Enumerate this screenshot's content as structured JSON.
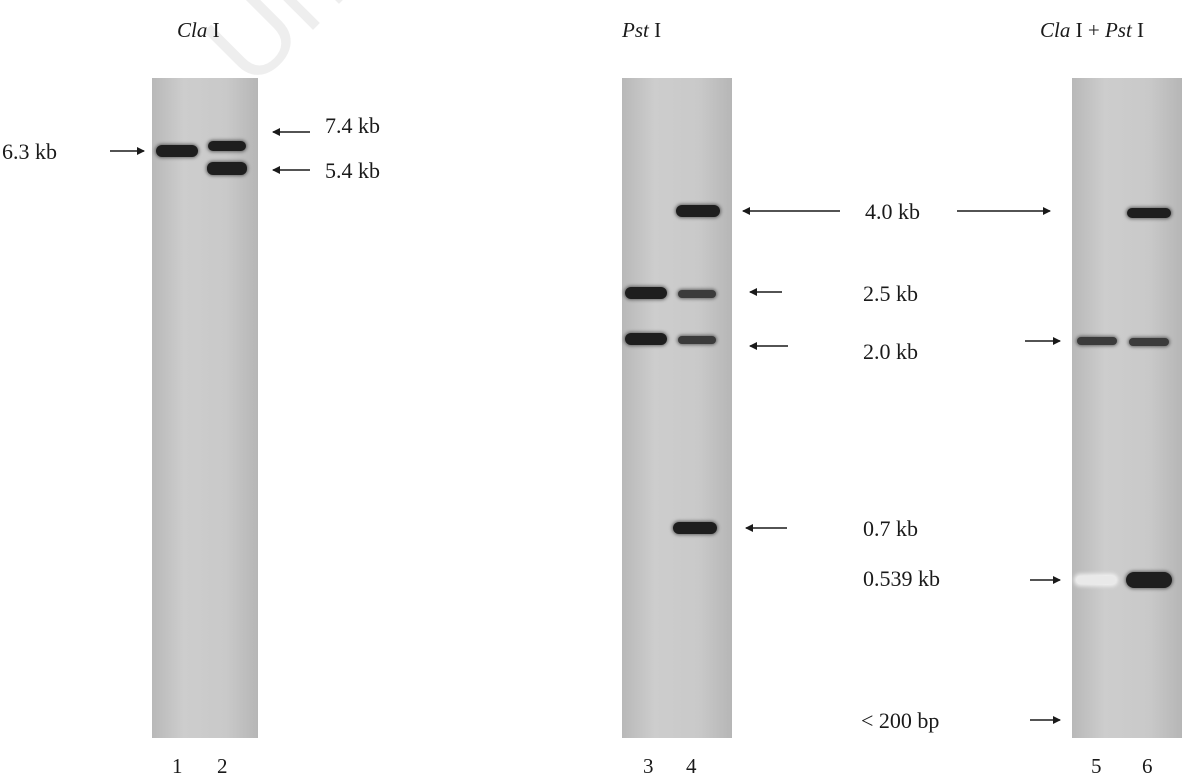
{
  "titles": {
    "left": {
      "enzyme": "Cla",
      "suffix": " I"
    },
    "middle": {
      "enzyme": "Pst",
      "suffix": " I"
    },
    "right": {
      "enzyme1": "Cla",
      "mid": " I + ",
      "enzyme2": "Pst",
      "suffix": " I"
    }
  },
  "size_labels": {
    "l_6_3": "6.3 kb",
    "l_7_4": "7.4 kb",
    "l_5_4": "5.4 kb",
    "l_4_0": "4.0 kb",
    "l_2_5": "2.5 kb",
    "l_2_0": "2.0 kb",
    "l_0_7": "0.7 kb",
    "l_0_539": "0.539 kb",
    "l_200bp": "< 200 bp"
  },
  "lane_numbers": [
    "1",
    "2",
    "3",
    "4",
    "5",
    "6"
  ],
  "watermark": "University of Cape"
}
